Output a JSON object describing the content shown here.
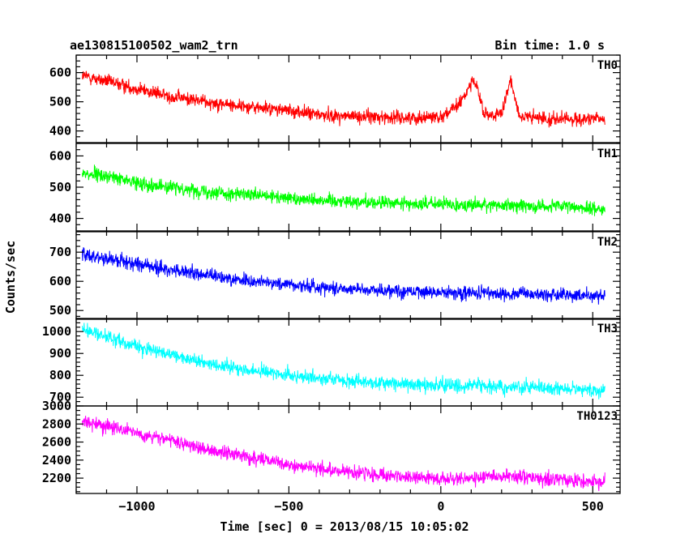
{
  "chart_data": {
    "type": "line",
    "title": "ae130815100502_wam2_trn",
    "subtitle": "Bin time: 1.0 s",
    "xlabel": "Time [sec] 0 = 2013/08/15 10:05:02",
    "ylabel": "Counts/sec",
    "xlim": [
      -1200,
      590
    ],
    "xticks": [
      -1000,
      -500,
      0,
      500
    ],
    "xtick_labels": [
      "−1000",
      "−500",
      "0",
      "500"
    ],
    "grid": false,
    "series": [
      {
        "name": "TH0",
        "color": "#ff0000",
        "ylim": [
          360,
          660
        ],
        "yticks": [
          400,
          500,
          600
        ],
        "x": [
          -1180,
          -1100,
          -1000,
          -900,
          -800,
          -700,
          -600,
          -500,
          -400,
          -300,
          -200,
          -100,
          0,
          50,
          80,
          100,
          120,
          140,
          160,
          200,
          230,
          260,
          300,
          400,
          540
        ],
        "values": [
          590,
          570,
          545,
          520,
          505,
          490,
          480,
          470,
          455,
          450,
          448,
          445,
          450,
          480,
          520,
          575,
          550,
          460,
          455,
          455,
          575,
          450,
          445,
          440,
          440
        ]
      },
      {
        "name": "TH1",
        "color": "#00ff00",
        "ylim": [
          360,
          640
        ],
        "yticks": [
          400,
          500,
          600
        ],
        "x": [
          -1180,
          -1100,
          -1000,
          -900,
          -800,
          -700,
          -600,
          -500,
          -400,
          -300,
          -200,
          -100,
          0,
          100,
          200,
          300,
          400,
          540
        ],
        "values": [
          545,
          535,
          515,
          500,
          490,
          480,
          472,
          465,
          460,
          455,
          450,
          447,
          445,
          443,
          442,
          440,
          438,
          430
        ]
      },
      {
        "name": "TH2",
        "color": "#0000ff",
        "ylim": [
          470,
          770
        ],
        "yticks": [
          500,
          600,
          700
        ],
        "x": [
          -1180,
          -1100,
          -1000,
          -900,
          -800,
          -700,
          -600,
          -500,
          -400,
          -300,
          -200,
          -100,
          0,
          100,
          200,
          300,
          400,
          540
        ],
        "values": [
          690,
          680,
          660,
          640,
          625,
          610,
          598,
          590,
          580,
          575,
          570,
          565,
          562,
          560,
          558,
          555,
          552,
          550
        ]
      },
      {
        "name": "TH3",
        "color": "#00ffff",
        "ylim": [
          660,
          1060
        ],
        "yticks": [
          700,
          800,
          900,
          1000
        ],
        "x": [
          -1180,
          -1100,
          -1000,
          -900,
          -800,
          -700,
          -600,
          -500,
          -400,
          -300,
          -200,
          -100,
          0,
          100,
          200,
          300,
          400,
          540
        ],
        "values": [
          1010,
          975,
          935,
          895,
          865,
          840,
          820,
          800,
          785,
          775,
          765,
          760,
          755,
          752,
          748,
          745,
          740,
          730
        ]
      },
      {
        "name": "TH0123",
        "color": "#ff00ff",
        "ylim": [
          2030,
          3000
        ],
        "yticks": [
          2200,
          2400,
          2600,
          2800,
          3000
        ],
        "x": [
          -1180,
          -1100,
          -1000,
          -900,
          -800,
          -700,
          -600,
          -500,
          -400,
          -300,
          -200,
          -100,
          0,
          100,
          200,
          300,
          400,
          540
        ],
        "values": [
          2830,
          2780,
          2700,
          2620,
          2540,
          2470,
          2410,
          2350,
          2300,
          2270,
          2240,
          2210,
          2190,
          2200,
          2220,
          2200,
          2180,
          2150
        ]
      }
    ]
  }
}
